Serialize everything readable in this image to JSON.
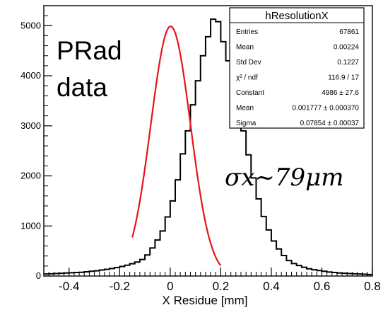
{
  "chart_data": {
    "type": "bar",
    "histogram_style": "step",
    "xlabel": "X Residue [mm]",
    "xlim": [
      -0.5,
      0.8
    ],
    "ylim": [
      0,
      5400
    ],
    "x_ticks": [
      "-0.4",
      "-0.2",
      "0",
      "0.2",
      "0.4",
      "0.6",
      "0.8"
    ],
    "y_ticks": [
      "0",
      "1000",
      "2000",
      "3000",
      "4000",
      "5000"
    ],
    "annotation_main": [
      "PRad",
      "data"
    ],
    "annotation_sigma": "σx~79μm",
    "stats_box": {
      "title": "hResolutionX",
      "rows": [
        {
          "label": "Entries",
          "value": "67861"
        },
        {
          "label": "Mean",
          "value": "0.00224"
        },
        {
          "label": "Std Dev",
          "value": "0.1227"
        },
        {
          "label": "χ² / ndf",
          "value": "116.9 / 17"
        },
        {
          "label": "Constant",
          "value": "4986 ± 27.6"
        },
        {
          "label": "Mean",
          "value": "0.001777 ± 0.000370"
        },
        {
          "label": "Sigma",
          "value": "0.07854 ± 0.00037"
        }
      ]
    },
    "histogram": {
      "bin_width": 0.02,
      "x_start": -0.5,
      "values": [
        40,
        45,
        50,
        55,
        60,
        65,
        70,
        75,
        85,
        95,
        105,
        120,
        135,
        150,
        170,
        190,
        215,
        245,
        280,
        330,
        420,
        560,
        720,
        900,
        1180,
        1500,
        1920,
        2440,
        2900,
        3420,
        3900,
        4400,
        4780,
        5130,
        5080,
        4680,
        4300,
        3860,
        3380,
        2900,
        2420,
        1960,
        1540,
        1190,
        920,
        700,
        540,
        410,
        310,
        250,
        210,
        175,
        145,
        125,
        110,
        95,
        80,
        70,
        60,
        55,
        50,
        45,
        40,
        35,
        30
      ]
    },
    "fit": {
      "function": "gaus",
      "constant": 4986,
      "mean": 0.001777,
      "sigma": 0.07854,
      "range": [
        -0.15,
        0.2
      ],
      "color": "#e8131a"
    },
    "histogram_color": "#000000"
  }
}
